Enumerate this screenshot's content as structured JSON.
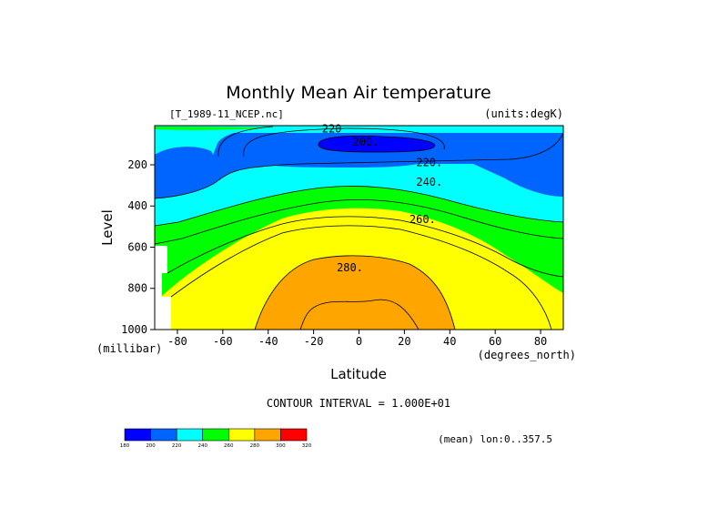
{
  "chart_data": {
    "type": "contour",
    "title": "Monthly Mean Air temperature",
    "dataset_label": "[T_1989-11_NCEP.nc]",
    "units_label": "(units:degK)",
    "xlabel": "Latitude",
    "ylabel": "Level",
    "x_unit_label": "(degrees_north)",
    "y_unit_label": "(millibar)",
    "xlim": [
      -90,
      90
    ],
    "ylim": [
      1000,
      10
    ],
    "y_inverted": true,
    "x_ticks": [
      -80,
      -60,
      -40,
      -20,
      0,
      20,
      40,
      60,
      80
    ],
    "y_ticks": [
      200,
      400,
      600,
      800,
      1000
    ],
    "contour_interval_text": "CONTOUR INTERVAL = 1.000E+01",
    "contour_labels": [
      {
        "text": "220",
        "lat": -12,
        "level": 25
      },
      {
        "text": "200.",
        "lat": 3,
        "level": 90
      },
      {
        "text": "220.",
        "lat": 31,
        "level": 190
      },
      {
        "text": "240.",
        "lat": 31,
        "level": 285
      },
      {
        "text": "260.",
        "lat": 28,
        "level": 465
      },
      {
        "text": "280.",
        "lat": -4,
        "level": 700
      }
    ],
    "color_scale": {
      "labels": [
        "180",
        "200",
        "220",
        "240",
        "260",
        "280",
        "300",
        "320"
      ],
      "colors": [
        "#0000ff",
        "#0064ff",
        "#00ffff",
        "#00ff00",
        "#ffff00",
        "#ffa500",
        "#ff0000"
      ]
    },
    "footer_text": "(mean) lon:0..357.5"
  }
}
